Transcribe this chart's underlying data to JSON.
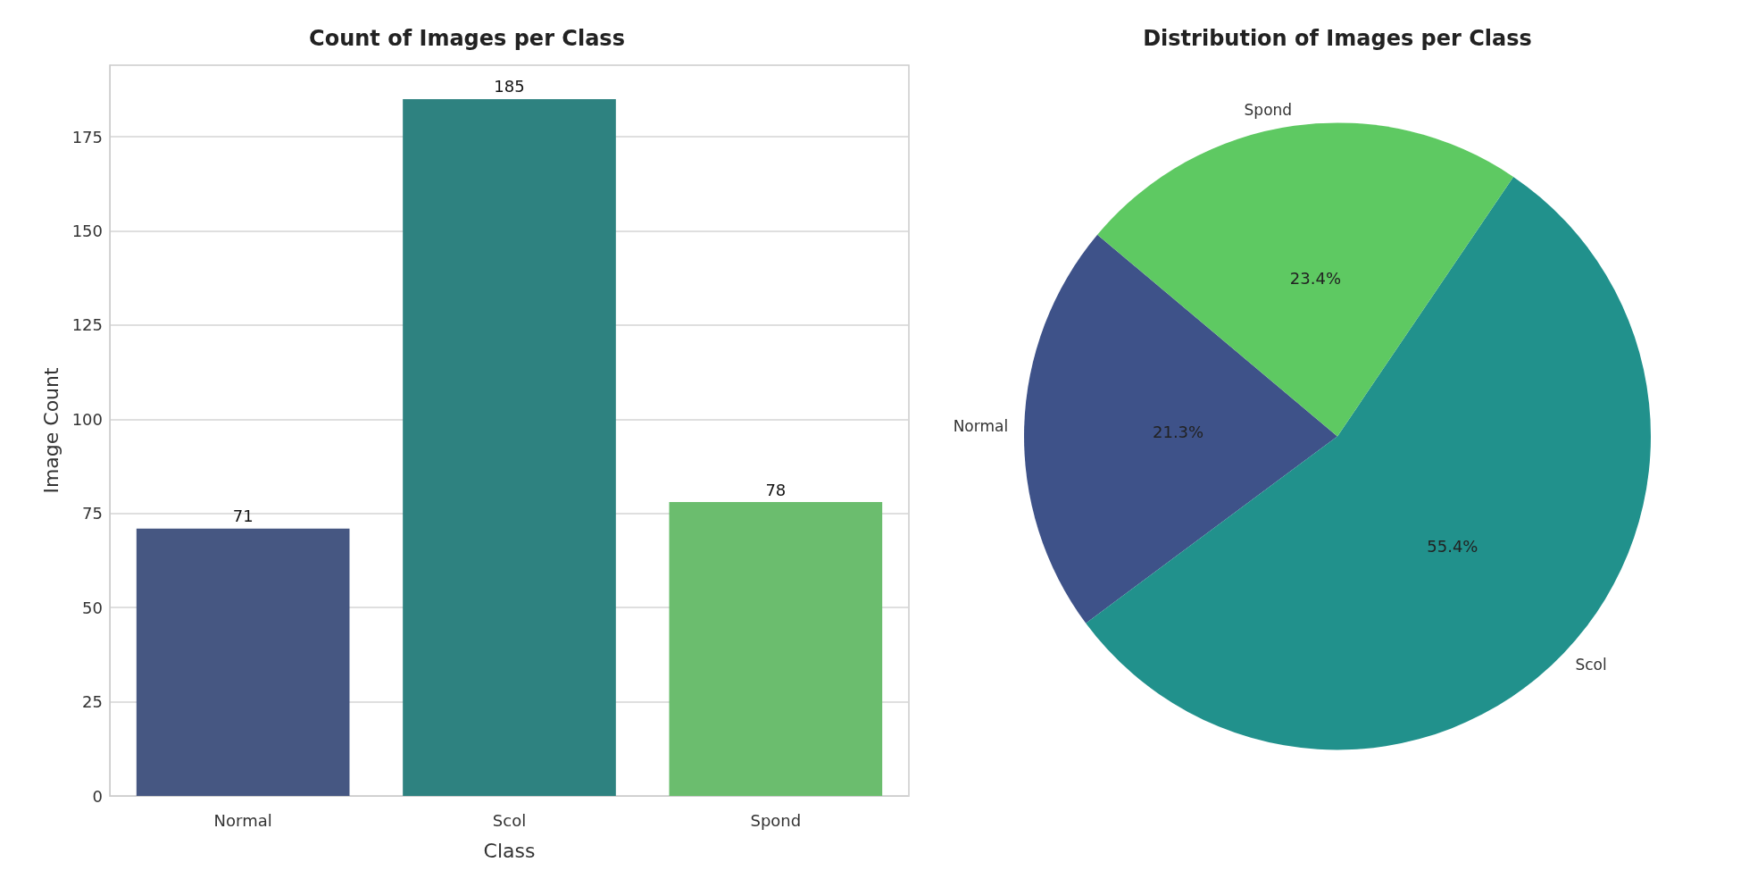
{
  "chart_data": [
    {
      "type": "bar",
      "title": "Count of Images per Class",
      "xlabel": "Class",
      "ylabel": "Image Count",
      "categories": [
        "Normal",
        "Scol",
        "Spond"
      ],
      "values": [
        71,
        185,
        78
      ],
      "colors": [
        "#465782",
        "#2e8280",
        "#6bbd6e"
      ],
      "ylim": [
        0,
        194
      ],
      "yticks": [
        0,
        25,
        50,
        75,
        100,
        125,
        150,
        175
      ],
      "grid": "y",
      "data_labels": true,
      "legend": false
    },
    {
      "type": "pie",
      "title": "Distribution of Images per Class",
      "categories": [
        "Normal",
        "Scol",
        "Spond"
      ],
      "values": [
        21.3,
        55.4,
        23.4
      ],
      "value_labels": [
        "21.3%",
        "55.4%",
        "23.4%"
      ],
      "colors": [
        "#3e5289",
        "#21918c",
        "#5ec962"
      ],
      "legend": false
    }
  ]
}
